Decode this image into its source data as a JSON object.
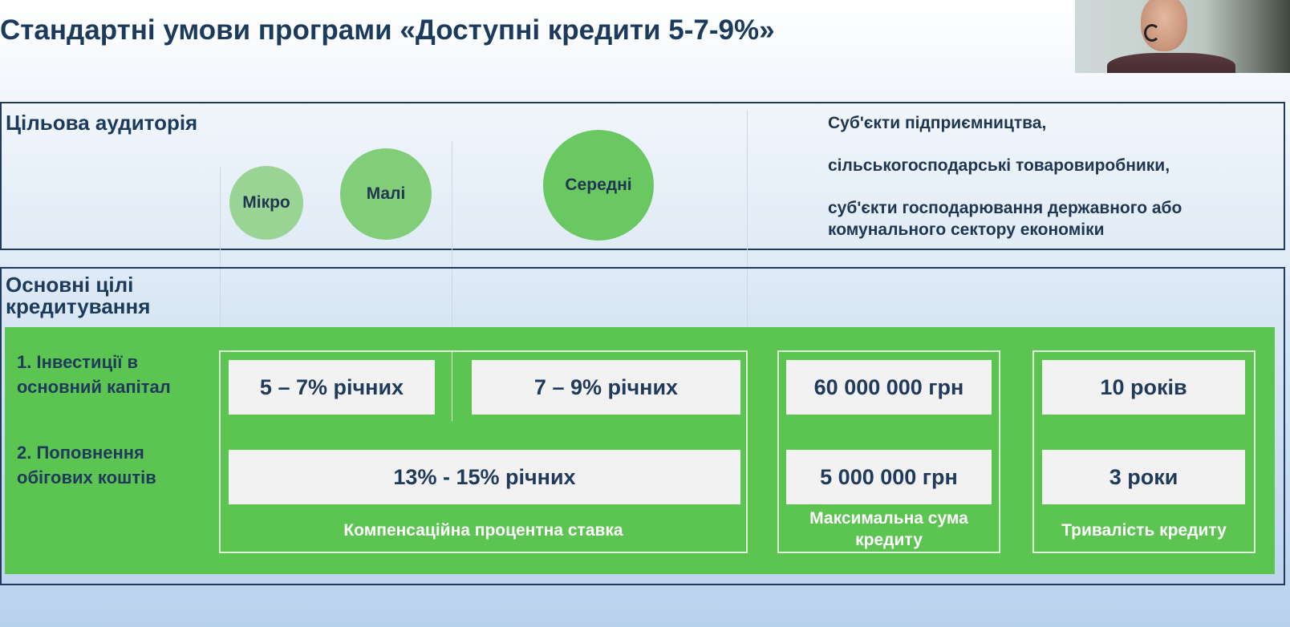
{
  "slide": {
    "title": "Стандартні умови програми «Доступні кредити 5-7-9%»"
  },
  "audience": {
    "heading": "Цільова аудиторія",
    "sizes": [
      "Мікро",
      "Малі",
      "Середні"
    ],
    "entities": [
      "Суб'єкти підприємництва,",
      "сільськогосподарські товаровиробники,",
      "суб'єкти господарювання державного або комунального сектору економіки"
    ]
  },
  "goals": {
    "heading": "Основні цілі кредитування",
    "items": [
      "1. Інвестиції в основний капітал",
      "2. Поповнення обігових коштів"
    ]
  },
  "rates": {
    "small_rate": "5 – 7% річних",
    "medium_rate": "7 – 9% річних",
    "working_capital_rate": "13% - 15% річних",
    "caption": "Компенсаційна процентна ставка"
  },
  "max_amount": {
    "investment": "60 000 000 грн",
    "working_capital": "5 000 000 грн",
    "caption": "Максимальна сума кредиту"
  },
  "term": {
    "investment": "10 років",
    "working_capital": "3 роки",
    "caption": "Тривалість кредиту"
  }
}
